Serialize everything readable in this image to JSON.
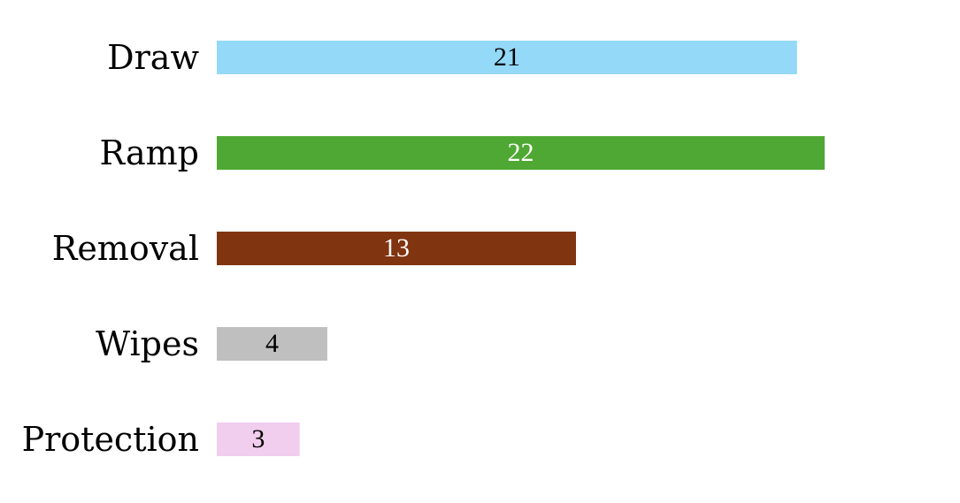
{
  "chart_data": {
    "type": "bar",
    "orientation": "horizontal",
    "title": "",
    "xlabel": "",
    "ylabel": "",
    "categories": [
      "Draw",
      "Ramp",
      "Removal",
      "Wipes",
      "Protection"
    ],
    "values": [
      21,
      22,
      13,
      4,
      3
    ],
    "colors": [
      "#94d9f7",
      "#4fa833",
      "#80340f",
      "#bfbfbf",
      "#f1cdee"
    ],
    "label_colors": [
      "#000000",
      "#ffffff",
      "#ffffff",
      "#000000",
      "#000000"
    ],
    "data_labels": [
      "21",
      "22",
      "13",
      "4",
      "3"
    ],
    "grid": false,
    "axes_visible": false,
    "legend": "none"
  }
}
